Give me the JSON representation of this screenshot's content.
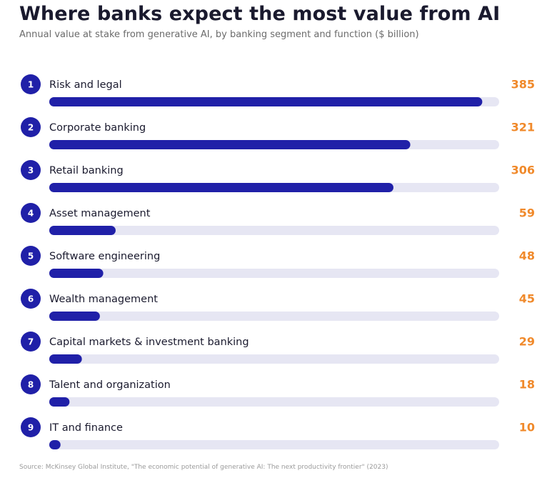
{
  "title": "Where banks expect the most value from AI",
  "subtitle": "Annual value at stake from generative AI, by banking segment and function ($ billion)",
  "source": "Source: McKinsey Global Institute, \"The economic potential of generative AI: The next productivity frontier\" (2023)",
  "colors": {
    "bar": "#2020a8",
    "track": "#e6e6f3",
    "value": "#f0892a",
    "rank_circle": "#2020a8",
    "rank_text": "#ffffff",
    "label": "#1a1a2e"
  },
  "chart_data": {
    "type": "bar",
    "orientation": "horizontal",
    "ranks": [
      "1",
      "2",
      "3",
      "4",
      "5",
      "6",
      "7",
      "8",
      "9"
    ],
    "categories": [
      "Risk and legal",
      "Corporate banking",
      "Retail banking",
      "Asset management",
      "Software engineering",
      "Wealth management",
      "Capital markets & investment banking",
      "Talent and organization",
      "IT and finance"
    ],
    "values": [
      385,
      321,
      306,
      59,
      48,
      45,
      29,
      18,
      10
    ],
    "xlim": [
      0,
      400
    ],
    "grid": false,
    "legend": "none"
  }
}
